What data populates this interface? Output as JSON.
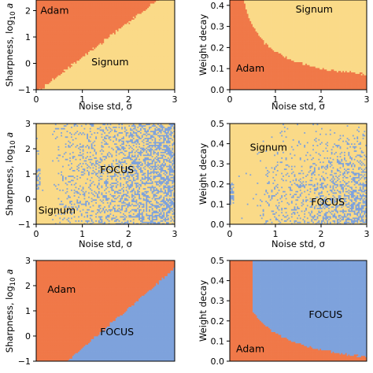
{
  "colors": {
    "Adam": "#f07848",
    "Signum": "#fada88",
    "FOCUS": "#7ea2dc",
    "background": "#ffffff"
  },
  "chart_data": [
    {
      "type": "heatmap",
      "panel": "row1-left",
      "xlabel": "Noise std, σ",
      "ylabel_prefix": "Sharpness, log",
      "ylabel_sub": "10",
      "ylabel_suffix": " a",
      "xlim": [
        0,
        3
      ],
      "ylim": [
        -1,
        3
      ],
      "xticks": [
        "0",
        "1",
        "2",
        "3"
      ],
      "yticks": [
        "−1",
        "0",
        "1",
        "2"
      ],
      "classes": [
        "Adam",
        "Signum"
      ],
      "boundary": "Adam for log10(a) > 1.33·σ − 1.1, Signum otherwise",
      "labels": [
        {
          "text": "Adam",
          "x": 0.4,
          "y": 2.0
        },
        {
          "text": "Signum",
          "x": 1.6,
          "y": 0.05
        }
      ]
    },
    {
      "type": "heatmap",
      "panel": "row1-right",
      "xlabel": "Noise std, σ",
      "ylabel": "Weight decay",
      "xlim": [
        0,
        3
      ],
      "ylim": [
        0,
        0.5
      ],
      "xticks": [
        "0",
        "1",
        "2",
        "3"
      ],
      "yticks": [
        "0.0",
        "0.1",
        "0.2",
        "0.3",
        "0.4"
      ],
      "classes": [
        "Adam",
        "Signum"
      ],
      "boundary": "Adam for weight decay < 0.012 + 0.2/(σ + 0.18), Signum otherwise",
      "labels": [
        {
          "text": "Signum",
          "x": 1.85,
          "y": 0.38
        },
        {
          "text": "Adam",
          "x": 0.45,
          "y": 0.1
        }
      ]
    },
    {
      "type": "heatmap",
      "panel": "row2-left",
      "xlabel": "Noise std, σ",
      "ylabel_prefix": "Sharpness, log",
      "ylabel_sub": "10",
      "ylabel_suffix": " a",
      "xlim": [
        0,
        3
      ],
      "ylim": [
        -1,
        3
      ],
      "xticks": [
        "0",
        "1",
        "2",
        "3"
      ],
      "yticks": [
        "−1",
        "0",
        "1",
        "2",
        "3"
      ],
      "classes": [
        "Signum",
        "FOCUS"
      ],
      "boundary": "mixed; FOCUS share grows with σ (about 55% near σ = 3), small FOCUS cluster near σ = 0, log10(a) ≈ 0.8",
      "labels": [
        {
          "text": "FOCUS",
          "x": 1.75,
          "y": 1.15
        },
        {
          "text": "Signum",
          "x": 0.45,
          "y": -0.45
        }
      ]
    },
    {
      "type": "heatmap",
      "panel": "row2-right",
      "xlabel": "Noise std, σ",
      "ylabel": "Weight decay",
      "xlim": [
        0,
        3
      ],
      "ylim": [
        0,
        0.5
      ],
      "xticks": [
        "0",
        "1",
        "2",
        "3"
      ],
      "yticks": [
        "0.0",
        "0.1",
        "0.2",
        "0.3",
        "0.4",
        "0.5"
      ],
      "classes": [
        "Signum",
        "FOCUS"
      ],
      "boundary": "mixed; FOCUS concentrated at large σ and small weight decay, small FOCUS cluster near σ = 0, weight decay ≈ 0.15",
      "labels": [
        {
          "text": "Signum",
          "x": 0.85,
          "y": 0.38
        },
        {
          "text": "FOCUS",
          "x": 2.15,
          "y": 0.11
        }
      ]
    },
    {
      "type": "heatmap",
      "panel": "row3-left",
      "xlabel": "",
      "ylabel_prefix": "Sharpness, log",
      "ylabel_sub": "10",
      "ylabel_suffix": " a",
      "xlim": [
        0,
        3
      ],
      "ylim": [
        -1,
        3
      ],
      "xticks": [],
      "yticks": [
        "−1",
        "0",
        "1",
        "2",
        "3"
      ],
      "classes": [
        "Adam",
        "FOCUS"
      ],
      "boundary": "Adam for log10(a) > 1.58·σ − 2.05, FOCUS otherwise",
      "labels": [
        {
          "text": "Adam",
          "x": 0.55,
          "y": 1.85
        },
        {
          "text": "FOCUS",
          "x": 1.75,
          "y": 0.15
        }
      ]
    },
    {
      "type": "heatmap",
      "panel": "row3-right",
      "xlabel": "",
      "ylabel": "Weight decay",
      "xlim": [
        0,
        3
      ],
      "ylim": [
        0,
        0.5
      ],
      "xticks": [],
      "yticks": [
        "0.0",
        "0.1",
        "0.2",
        "0.3",
        "0.4",
        "0.5"
      ],
      "classes": [
        "Adam",
        "FOCUS"
      ],
      "boundary": "Adam for σ < 0.5 or weight decay < 0.3/(σ + 0.45) − 0.065, FOCUS otherwise",
      "labels": [
        {
          "text": "FOCUS",
          "x": 2.1,
          "y": 0.23
        },
        {
          "text": "Adam",
          "x": 0.45,
          "y": 0.06
        }
      ]
    }
  ]
}
